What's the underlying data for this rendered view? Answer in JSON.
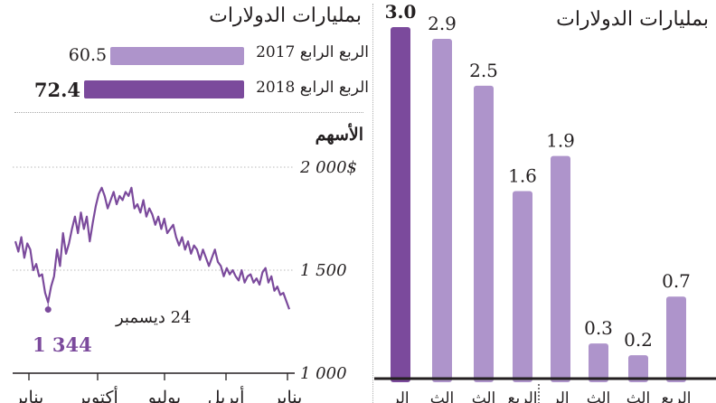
{
  "colors": {
    "bar_dark": "#7b4a9c",
    "bar_light": "#ae94cb",
    "line": "#7b4a9c",
    "text": "#231f20",
    "grid": "#b9b9b9"
  },
  "left": {
    "units_label": "بمليارات الدولارات",
    "hbars": [
      {
        "label": "الربع الرابع 2017",
        "value": "60.5",
        "color": "light"
      },
      {
        "label": "الربع الرابع 2018",
        "value": "72.4",
        "color": "dark"
      }
    ],
    "stock_title": "الأسهم",
    "annotation_date": "24 ديسمبر",
    "annotation_value": "1 344"
  },
  "right": {
    "units_label": "بمليارات الدولارات"
  },
  "chart_data": [
    {
      "type": "bar",
      "orientation": "horizontal",
      "categories": [
        "الربع الرابع 2017",
        "الربع الرابع 2018"
      ],
      "values": [
        60.5,
        72.4
      ]
    },
    {
      "type": "line",
      "title": "الأسهم",
      "yticks": [
        "2 000$",
        "1 500",
        "1 000"
      ],
      "ylim": [
        1000,
        2000
      ],
      "xticks": [
        "يناير",
        "أكتوبر",
        "يوليو",
        "أبريل",
        "يناير"
      ],
      "series": [
        {
          "values": [
            1640,
            1590,
            1660,
            1560,
            1630,
            1600,
            1500,
            1530,
            1470,
            1480,
            1390,
            1344,
            1420,
            1470,
            1600,
            1520,
            1680,
            1580,
            1630,
            1700,
            1760,
            1680,
            1780,
            1700,
            1760,
            1640,
            1730,
            1810,
            1870,
            1900,
            1860,
            1800,
            1840,
            1880,
            1820,
            1860,
            1840,
            1880,
            1860,
            1900,
            1800,
            1820,
            1780,
            1840,
            1760,
            1800,
            1770,
            1720,
            1760,
            1700,
            1750,
            1680,
            1700,
            1720,
            1660,
            1620,
            1660,
            1600,
            1640,
            1580,
            1620,
            1600,
            1550,
            1600,
            1560,
            1520,
            1560,
            1600,
            1540,
            1520,
            1470,
            1510,
            1480,
            1500,
            1470,
            1450,
            1500,
            1440,
            1470,
            1480,
            1440,
            1460,
            1430,
            1490,
            1510,
            1440,
            1470,
            1400,
            1420,
            1380,
            1390,
            1350,
            1310
          ]
        }
      ],
      "annotation": {
        "label": "24 ديسمبر",
        "value": 1344
      }
    },
    {
      "type": "bar",
      "ylim": [
        0,
        3.2
      ],
      "categories": [
        "الر",
        "الث",
        "الث",
        "الربع",
        "الر",
        "الث",
        "الث",
        "الربع"
      ],
      "values": [
        3.0,
        2.9,
        2.5,
        1.6,
        1.9,
        0.3,
        0.2,
        0.7
      ],
      "value_labels": [
        "3.0",
        "2.9",
        "2.5",
        "1.6",
        "1.9",
        "0.3",
        "0.2",
        "0.7"
      ],
      "highlight_index": 0
    }
  ]
}
